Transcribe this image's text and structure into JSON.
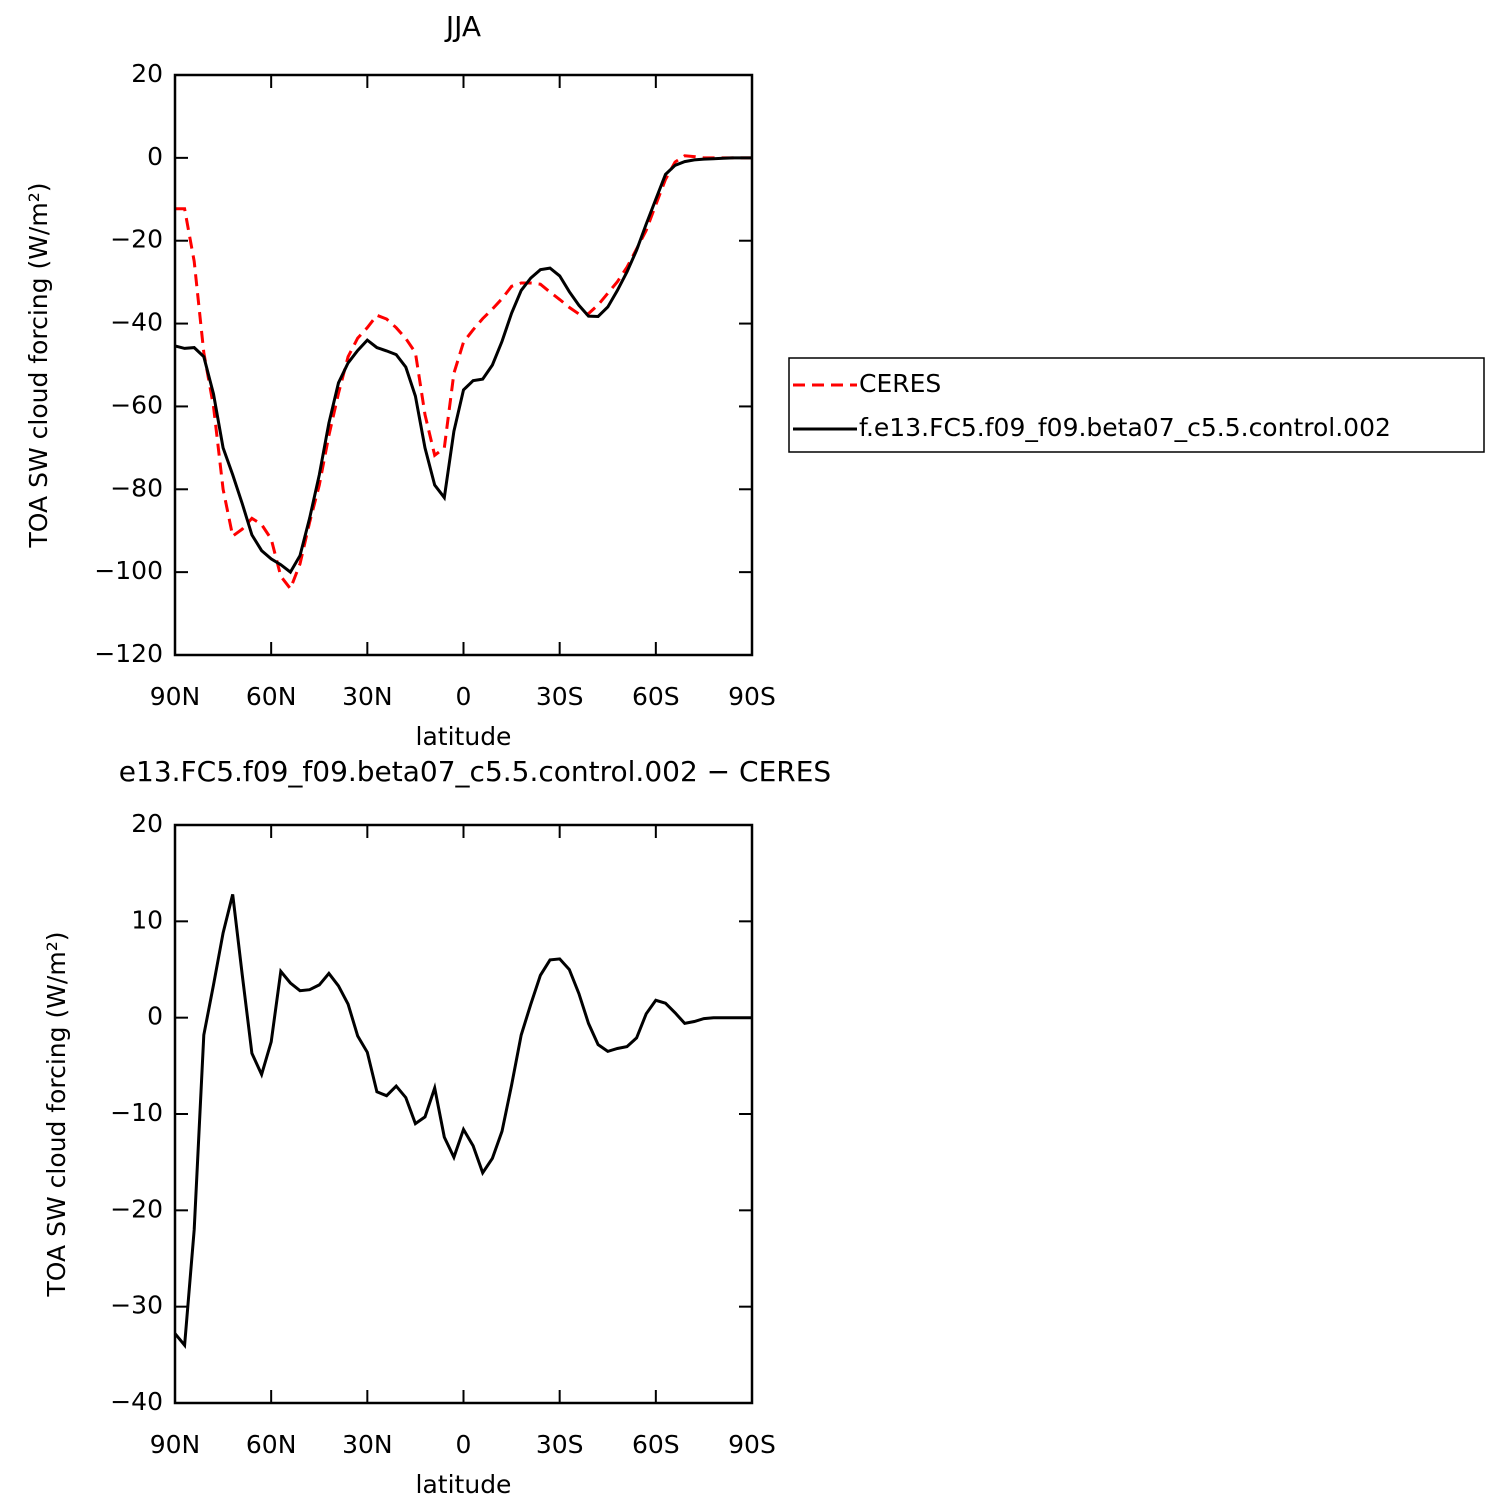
{
  "chart_data": [
    {
      "type": "line",
      "title": "JJA",
      "xlabel": "latitude",
      "ylabel": "TOA SW cloud forcing (W/m²)",
      "x": [
        90,
        87,
        84,
        81,
        78,
        75,
        72,
        69,
        66,
        63,
        60,
        57,
        54,
        51,
        48,
        45,
        42,
        39,
        36,
        33,
        30,
        27,
        24,
        21,
        18,
        15,
        12,
        9,
        6,
        3,
        0,
        -3,
        -6,
        -9,
        -12,
        -15,
        -18,
        -21,
        -24,
        -27,
        -30,
        -33,
        -36,
        -39,
        -42,
        -45,
        -48,
        -51,
        -54,
        -57,
        -60,
        -63,
        -66,
        -69,
        -72,
        -75,
        -78,
        -81,
        -84,
        -87,
        -90
      ],
      "series": [
        {
          "name": "CERES",
          "color": "#ff0000",
          "linestyle": "dashed",
          "values": [
            -12.3,
            -12.3,
            -25,
            -47,
            -60,
            -80,
            -91.3,
            -89.6,
            -87,
            -88.5,
            -92,
            -101,
            -104,
            -98,
            -88,
            -79,
            -67,
            -56.8,
            -48,
            -43.5,
            -41,
            -38,
            -38.9,
            -41,
            -43.6,
            -47,
            -62,
            -71.8,
            -70,
            -52,
            -44.5,
            -41.5,
            -38.8,
            -36.5,
            -34,
            -31,
            -30.2,
            -30.2,
            -30.5,
            -32.4,
            -34.2,
            -36.1,
            -37.7,
            -37.6,
            -35.5,
            -32.7,
            -29.9,
            -26.4,
            -22,
            -17.5,
            -11.3,
            -5.2,
            -1,
            0.5,
            0.3,
            0,
            0,
            0,
            0,
            0,
            0
          ]
        },
        {
          "name": "f.e13.FC5.f09_f09.beta07_c5.5.control.002",
          "color": "#000000",
          "linestyle": "solid",
          "values": [
            -45.4,
            -46,
            -45.8,
            -48,
            -57,
            -70,
            -76.5,
            -83.5,
            -91,
            -94.8,
            -96.8,
            -98.2,
            -100,
            -96,
            -87,
            -76.5,
            -64,
            -54.3,
            -49.5,
            -46.5,
            -44,
            -45.8,
            -46.6,
            -47.5,
            -50.5,
            -57.5,
            -70,
            -79,
            -82,
            -66,
            -56,
            -53.8,
            -53.4,
            -50,
            -44.3,
            -37.5,
            -32,
            -29,
            -27,
            -26.6,
            -28.5,
            -32.3,
            -35.6,
            -38.2,
            -38.3,
            -36,
            -32,
            -27.5,
            -22.3,
            -16,
            -10,
            -4,
            -1.8,
            -0.9,
            -0.5,
            -0.3,
            -0.2,
            -0.1,
            0,
            0,
            0
          ]
        }
      ],
      "xlim": [
        90,
        -90
      ],
      "xticks": [
        {
          "value": 90,
          "label": "90N"
        },
        {
          "value": 60,
          "label": "60N"
        },
        {
          "value": 30,
          "label": "30N"
        },
        0,
        {
          "value": -30,
          "label": "30S"
        },
        {
          "value": -60,
          "label": "60S"
        },
        {
          "value": -90,
          "label": "90S"
        }
      ],
      "ylim": [
        -120,
        20
      ],
      "yticks": [
        20,
        0,
        {
          "value": -20,
          "label": "−20"
        },
        {
          "value": -40,
          "label": "−40"
        },
        {
          "value": -60,
          "label": "−60"
        },
        {
          "value": -80,
          "label": "−80"
        },
        {
          "value": -100,
          "label": "−100"
        },
        {
          "value": -120,
          "label": "−120"
        }
      ],
      "legend": "right"
    },
    {
      "type": "line",
      "title": "e13.FC5.f09_f09.beta07_c5.5.control.002 − CERES",
      "xlabel": "latitude",
      "ylabel": "TOA SW cloud forcing (W/m²)",
      "x": [
        90,
        87,
        84,
        81,
        78,
        75,
        72,
        69,
        66,
        63,
        60,
        57,
        54,
        51,
        48,
        45,
        42,
        39,
        36,
        33,
        30,
        27,
        24,
        21,
        18,
        15,
        12,
        9,
        6,
        3,
        0,
        -3,
        -6,
        -9,
        -12,
        -15,
        -18,
        -21,
        -24,
        -27,
        -30,
        -33,
        -36,
        -39,
        -42,
        -45,
        -48,
        -51,
        -54,
        -57,
        -60,
        -63,
        -66,
        -69,
        -72,
        -75,
        -78,
        -81,
        -84,
        -87,
        -90
      ],
      "values": [
        -32.8,
        -34,
        -22,
        -1.8,
        3.4,
        8.8,
        12.8,
        4.4,
        -3.7,
        -5.9,
        -2.5,
        4.8,
        3.6,
        2.8,
        2.9,
        3.4,
        4.6,
        3.3,
        1.4,
        -1.9,
        -3.6,
        -7.7,
        -8.1,
        -7.1,
        -8.3,
        -11,
        -10.3,
        -7.3,
        -12.4,
        -14.5,
        -11.6,
        -13.3,
        -16.1,
        -14.6,
        -11.8,
        -7,
        -1.8,
        1.4,
        4.4,
        6,
        6.1,
        5,
        2.5,
        -0.6,
        -2.8,
        -3.5,
        -3.2,
        -3,
        -2.1,
        0.4,
        1.8,
        1.5,
        0.5,
        -0.6,
        -0.4,
        -0.1,
        0,
        0,
        0,
        0,
        0
      ],
      "color": "#000000",
      "xlim": [
        90,
        -90
      ],
      "xticks": [
        {
          "value": 90,
          "label": "90N"
        },
        {
          "value": 60,
          "label": "60N"
        },
        {
          "value": 30,
          "label": "30N"
        },
        0,
        {
          "value": -30,
          "label": "30S"
        },
        {
          "value": -60,
          "label": "60S"
        },
        {
          "value": -90,
          "label": "90S"
        }
      ],
      "ylim": [
        -40,
        20
      ],
      "yticks": [
        20,
        10,
        0,
        {
          "value": -10,
          "label": "−10"
        },
        {
          "value": -20,
          "label": "−20"
        },
        {
          "value": -30,
          "label": "−30"
        },
        {
          "value": -40,
          "label": "−40"
        }
      ]
    }
  ]
}
